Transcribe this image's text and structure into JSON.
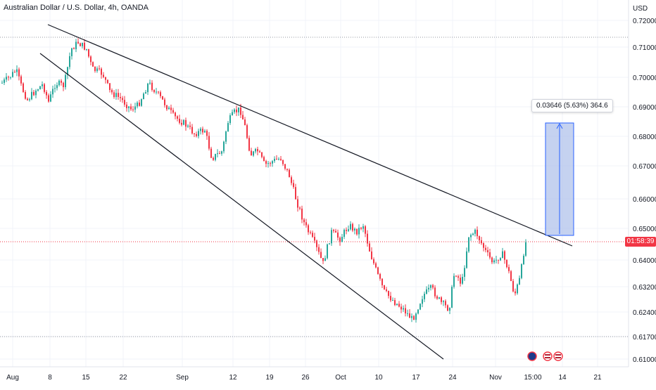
{
  "header": {
    "title": "Australian Dollar / U.S. Dollar, 4h, OANDA",
    "unit": "USD"
  },
  "price_tag": "01:58:39",
  "measure_label": "0.03646 (5.63%) 364.6",
  "colors": {
    "up": "#26a69a",
    "down": "#f23645",
    "trendline": "#131722",
    "measure_fill": "#b2c3eb",
    "measure_line": "#2962ff",
    "grid": "#f0f3fa"
  },
  "chart_data": {
    "type": "candlestick",
    "y_axis_labels": [
      "0.72000",
      "0.71000",
      "0.70000",
      "0.69000",
      "0.68000",
      "0.67000",
      "0.66000",
      "0.65000",
      "0.64000",
      "0.63200",
      "0.62400",
      "0.61700",
      "0.61000"
    ],
    "x_axis_labels": [
      "Aug",
      "8",
      "15",
      "22",
      "Sep",
      "12",
      "19",
      "26",
      "Oct",
      "10",
      "17",
      "24",
      "Nov",
      "15:00",
      "14",
      "21"
    ],
    "events": [
      "flag-au",
      "flag-us",
      "flag-us"
    ],
    "series": []
  }
}
